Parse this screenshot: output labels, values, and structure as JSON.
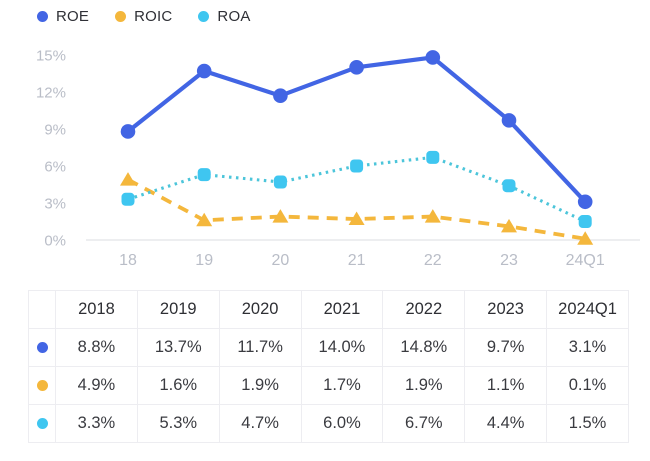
{
  "legend": {
    "items": [
      {
        "label": "ROE",
        "color": "#4265e4"
      },
      {
        "label": "ROIC",
        "color": "#f4b73c"
      },
      {
        "label": "ROA",
        "color": "#3fc6f0"
      }
    ]
  },
  "chart_data": {
    "type": "line",
    "categories": [
      "18",
      "19",
      "20",
      "21",
      "22",
      "23",
      "24Q1"
    ],
    "ytick_values": [
      0,
      3,
      6,
      9,
      12,
      15
    ],
    "ytick_suffix": "%",
    "ylim": [
      0,
      15
    ],
    "grid": false,
    "baseline_only": true,
    "legend_position": "top-left",
    "series": [
      {
        "name": "ROIC",
        "color": "#f4b73c",
        "line_color": "#f4b73c",
        "line_style": "dashed",
        "marker": "triangle",
        "values": [
          4.9,
          1.6,
          1.9,
          1.7,
          1.9,
          1.1,
          0.1
        ]
      },
      {
        "name": "ROA",
        "color": "#3fc6f0",
        "line_color": "#4cc5da",
        "line_style": "dotted",
        "marker": "square",
        "values": [
          3.3,
          5.3,
          4.7,
          6.0,
          6.7,
          4.4,
          1.5
        ]
      },
      {
        "name": "ROE",
        "color": "#4265e4",
        "line_color": "#4265e4",
        "line_style": "solid",
        "marker": "circle",
        "values": [
          8.8,
          13.7,
          11.7,
          14.0,
          14.8,
          9.7,
          3.1
        ]
      }
    ]
  },
  "table": {
    "columns": [
      "2018",
      "2019",
      "2020",
      "2021",
      "2022",
      "2023",
      "2024Q1"
    ],
    "rows": [
      {
        "series": "ROE",
        "color": "#4265e4",
        "values": [
          "8.8%",
          "13.7%",
          "11.7%",
          "14.0%",
          "14.8%",
          "9.7%",
          "3.1%"
        ]
      },
      {
        "series": "ROIC",
        "color": "#f4b73c",
        "values": [
          "4.9%",
          "1.6%",
          "1.9%",
          "1.7%",
          "1.9%",
          "1.1%",
          "0.1%"
        ]
      },
      {
        "series": "ROA",
        "color": "#3fc6f0",
        "values": [
          "3.3%",
          "5.3%",
          "4.7%",
          "6.0%",
          "6.7%",
          "4.4%",
          "1.5%"
        ]
      }
    ]
  },
  "style": {
    "axis_label_color": "#b9bdc7",
    "baseline_color": "#e7e8ec",
    "table_border_color": "#ededf1"
  }
}
